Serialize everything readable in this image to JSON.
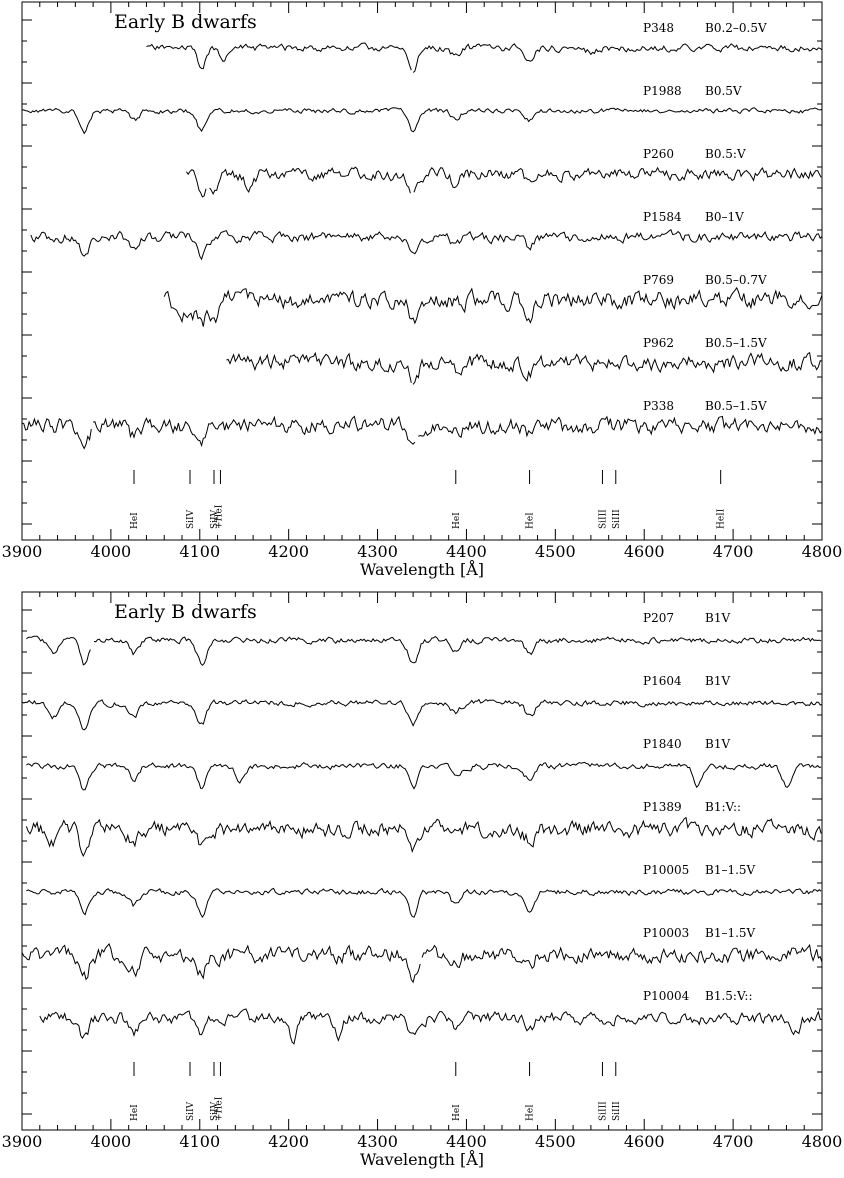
{
  "chart_data": [
    {
      "type": "line",
      "title": "Early B dwarfs",
      "xlabel": "Wavelength [Å]",
      "xlim": [
        3900,
        4800
      ],
      "xticks": [
        "3900",
        "4000",
        "4100",
        "4200",
        "4300",
        "4400",
        "4500",
        "4600",
        "4700",
        "4800"
      ],
      "series": [
        {
          "star": "P348",
          "sptype": "B0.2–0.5V",
          "xrange": [
            4040,
            4800
          ],
          "dips": [
            [
              4102,
              18
            ],
            [
              4127,
              10
            ],
            [
              4340,
              22
            ],
            [
              4388,
              8
            ],
            [
              4471,
              12
            ],
            [
              4541,
              5
            ]
          ],
          "noise": 3.5,
          "breaks": [
            4340
          ],
          "seed": 11
        },
        {
          "star": "P1988",
          "sptype": "B0.5V",
          "xrange": [
            3900,
            4800
          ],
          "dips": [
            [
              3970,
              22
            ],
            [
              4026,
              10
            ],
            [
              4102,
              20
            ],
            [
              4340,
              22
            ],
            [
              4388,
              7
            ],
            [
              4471,
              10
            ]
          ],
          "noise": 2.5,
          "breaks": [],
          "seed": 23
        },
        {
          "star": "P260",
          "sptype": "B0.5:V",
          "xrange": [
            4085,
            4800
          ],
          "dips": [
            [
              4102,
              22
            ],
            [
              4115,
              18
            ],
            [
              4155,
              14
            ],
            [
              4340,
              24
            ],
            [
              4388,
              10
            ],
            [
              4471,
              8
            ]
          ],
          "noise": 6,
          "breaks": [
            4110,
            4340
          ],
          "seed": 37
        },
        {
          "star": "P1584",
          "sptype": "B0–1V",
          "xrange": [
            3910,
            4800
          ],
          "dips": [
            [
              3970,
              20
            ],
            [
              4026,
              8
            ],
            [
              4102,
              18
            ],
            [
              4340,
              22
            ],
            [
              4388,
              8
            ],
            [
              4471,
              10
            ]
          ],
          "noise": 5,
          "breaks": [],
          "seed": 41
        },
        {
          "star": "P769",
          "sptype": "B0.5–0.7V",
          "xrange": [
            4060,
            4800
          ],
          "dips": [
            [
              4075,
              18
            ],
            [
              4088,
              22
            ],
            [
              4102,
              24
            ],
            [
              4116,
              20
            ],
            [
              4340,
              20
            ],
            [
              4471,
              12
            ]
          ],
          "noise": 9,
          "breaks": [],
          "seed": 53
        },
        {
          "star": "P962",
          "sptype": "B0.5–1.5V",
          "xrange": [
            4130,
            4800
          ],
          "dips": [
            [
              4340,
              16
            ],
            [
              4388,
              8
            ],
            [
              4471,
              10
            ]
          ],
          "noise": 8,
          "breaks": [
            4340
          ],
          "seed": 67
        },
        {
          "star": "P338",
          "sptype": "B0.5–1.5V",
          "xrange": [
            3900,
            4800
          ],
          "dips": [
            [
              3970,
              24
            ],
            [
              4026,
              10
            ],
            [
              4102,
              20
            ],
            [
              4340,
              24
            ],
            [
              4388,
              8
            ],
            [
              4471,
              10
            ],
            [
              4515,
              8
            ]
          ],
          "noise": 8,
          "breaks": [
            3980,
            4345
          ],
          "seed": 79
        }
      ],
      "line_ids": [
        {
          "label": "HeI",
          "wl": 4026
        },
        {
          "label": "SiIV",
          "wl": 4089
        },
        {
          "label": "SiIV",
          "wl": 4116
        },
        {
          "label": "+HeI",
          "wl": 4121
        },
        {
          "label": "HeI",
          "wl": 4388
        },
        {
          "label": "HeI",
          "wl": 4471
        },
        {
          "label": "SiIII",
          "wl": 4553
        },
        {
          "label": "SiIII",
          "wl": 4568
        },
        {
          "label": "HeII",
          "wl": 4686
        }
      ]
    },
    {
      "type": "line",
      "title": "Early B dwarfs",
      "xlabel": "Wavelength [Å]",
      "xlim": [
        3900,
        4800
      ],
      "xticks": [
        "3900",
        "4000",
        "4100",
        "4200",
        "4300",
        "4400",
        "4500",
        "4600",
        "4700",
        "4800"
      ],
      "series": [
        {
          "star": "P207",
          "sptype": "B1V",
          "xrange": [
            3905,
            4800
          ],
          "dips": [
            [
              3935,
              14
            ],
            [
              3970,
              26
            ],
            [
              4026,
              14
            ],
            [
              4102,
              24
            ],
            [
              4340,
              24
            ],
            [
              4388,
              10
            ],
            [
              4471,
              14
            ]
          ],
          "noise": 3,
          "breaks": [
            3980
          ],
          "seed": 97
        },
        {
          "star": "P1604",
          "sptype": "B1V",
          "xrange": [
            3900,
            4800
          ],
          "dips": [
            [
              3935,
              14
            ],
            [
              3970,
              24
            ],
            [
              4026,
              14
            ],
            [
              4102,
              22
            ],
            [
              4340,
              22
            ],
            [
              4388,
              10
            ],
            [
              4471,
              14
            ]
          ],
          "noise": 3,
          "breaks": [],
          "seed": 103
        },
        {
          "star": "P1840",
          "sptype": "B1V",
          "xrange": [
            3905,
            4800
          ],
          "dips": [
            [
              3970,
              24
            ],
            [
              4026,
              14
            ],
            [
              4102,
              22
            ],
            [
              4145,
              14
            ],
            [
              4340,
              22
            ],
            [
              4388,
              10
            ],
            [
              4471,
              14
            ],
            [
              4660,
              18
            ],
            [
              4760,
              20
            ]
          ],
          "noise": 3,
          "breaks": [],
          "seed": 109
        },
        {
          "star": "P1389",
          "sptype": "B1:V::",
          "xrange": [
            3905,
            4800
          ],
          "dips": [
            [
              3935,
              16
            ],
            [
              3970,
              22
            ],
            [
              4026,
              14
            ],
            [
              4102,
              22
            ],
            [
              4340,
              20
            ],
            [
              4471,
              12
            ]
          ],
          "noise": 8,
          "breaks": [],
          "seed": 127
        },
        {
          "star": "P10005",
          "sptype": "B1–1.5V",
          "xrange": [
            3905,
            4800
          ],
          "dips": [
            [
              3970,
              22
            ],
            [
              4026,
              14
            ],
            [
              4102,
              24
            ],
            [
              4340,
              24
            ],
            [
              4388,
              14
            ],
            [
              4471,
              18
            ]
          ],
          "noise": 3,
          "breaks": [],
          "seed": 131
        },
        {
          "star": "P10003",
          "sptype": "B1–1.5V",
          "xrange": [
            3900,
            4800
          ],
          "dips": [
            [
              3970,
              24
            ],
            [
              4026,
              16
            ],
            [
              4102,
              20
            ],
            [
              4340,
              22
            ],
            [
              4388,
              8
            ],
            [
              4471,
              14
            ]
          ],
          "noise": 8,
          "breaks": [
            4350
          ],
          "seed": 137
        },
        {
          "star": "P10004",
          "sptype": "B1.5:V::",
          "xrange": [
            3920,
            4800
          ],
          "dips": [
            [
              3970,
              20
            ],
            [
              4026,
              14
            ],
            [
              4102,
              16
            ],
            [
              4205,
              18
            ],
            [
              4255,
              18
            ],
            [
              4340,
              18
            ],
            [
              4388,
              8
            ],
            [
              4471,
              12
            ],
            [
              4770,
              14
            ]
          ],
          "noise": 6,
          "breaks": [],
          "seed": 149
        }
      ],
      "line_ids": [
        {
          "label": "HeI",
          "wl": 4026
        },
        {
          "label": "SiIV",
          "wl": 4089
        },
        {
          "label": "SiIV",
          "wl": 4116
        },
        {
          "label": "+HeI",
          "wl": 4121
        },
        {
          "label": "HeI",
          "wl": 4388
        },
        {
          "label": "HeI",
          "wl": 4471
        },
        {
          "label": "SiIII",
          "wl": 4553
        },
        {
          "label": "SiIII",
          "wl": 4568
        }
      ]
    }
  ]
}
